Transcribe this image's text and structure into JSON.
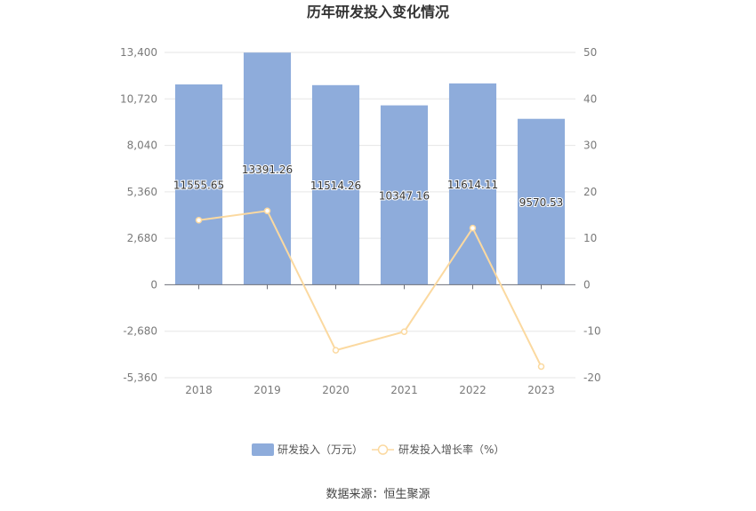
{
  "chart_data": {
    "type": "bar",
    "title": "历年研发投入变化情况",
    "categories": [
      "2018",
      "2019",
      "2020",
      "2021",
      "2022",
      "2023"
    ],
    "series": [
      {
        "name": "研发投入（万元）",
        "type": "bar",
        "axis": "left",
        "color": "#8eacdb",
        "values": [
          11555.65,
          13391.26,
          11514.26,
          10347.16,
          11614.11,
          9570.53
        ],
        "labels": [
          "11555.65",
          "13391.26",
          "11514.26",
          "10347.16",
          "11614.11",
          "9570.53"
        ]
      },
      {
        "name": "研发投入增长率（%）",
        "type": "line",
        "axis": "right",
        "color": "#fbd9a0",
        "values": [
          13.9,
          15.9,
          -14.1,
          -10.1,
          12.2,
          -17.6
        ]
      }
    ],
    "y_left": {
      "range": [
        -5360,
        13400
      ],
      "ticks": [
        13400,
        10720,
        8040,
        5360,
        2680,
        0,
        -2680,
        -5360
      ],
      "tick_labels": [
        "13,400",
        "10,720",
        "8,040",
        "5,360",
        "2,680",
        "0",
        "-2,680",
        "-5,360"
      ]
    },
    "y_right": {
      "range": [
        -20,
        50
      ],
      "ticks": [
        50,
        40,
        30,
        20,
        10,
        0,
        -10,
        -20
      ],
      "tick_labels": [
        "50",
        "40",
        "30",
        "20",
        "10",
        "0",
        "-10",
        "-20"
      ]
    },
    "grid": true,
    "legend_position": "bottom-center"
  },
  "source_text": "数据来源：恒生聚源"
}
